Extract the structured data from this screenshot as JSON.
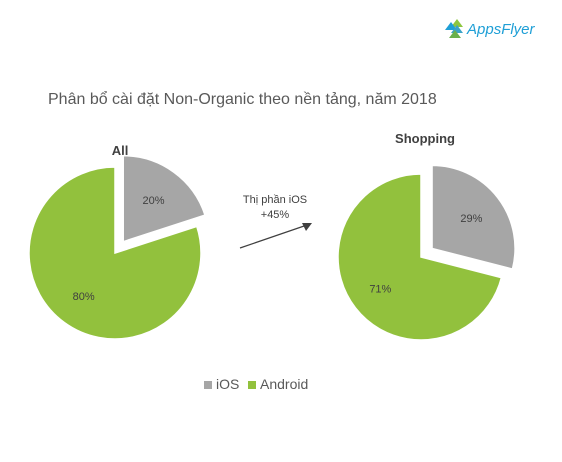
{
  "brand": {
    "name": "AppsFlyer",
    "color": "#1f9fd6",
    "petal_colors": [
      "#8dc63f",
      "#1f9fd6",
      "#3aa3c8",
      "#6ab04c"
    ]
  },
  "colors": {
    "ios": "#a6a6a6",
    "android": "#92c13d",
    "pie_edge": "#ffffff",
    "text": "#595959",
    "arrow": "#404040"
  },
  "chart_data": {
    "type": "pie",
    "title": "Phân bổ cài đặt Non-Organic theo nền tảng, năm 2018",
    "charts": [
      {
        "title": "All",
        "slices": [
          {
            "name": "iOS",
            "value": 20,
            "label": "20%",
            "exploded": true
          },
          {
            "name": "Android",
            "value": 80,
            "label": "80%",
            "exploded": false
          }
        ]
      },
      {
        "title": "Shopping",
        "slices": [
          {
            "name": "iOS",
            "value": 29,
            "label": "29%",
            "exploded": true
          },
          {
            "name": "Android",
            "value": 71,
            "label": "71%",
            "exploded": false
          }
        ]
      }
    ],
    "annotation": {
      "lines": [
        "Thị phần iOS",
        "+45%"
      ]
    },
    "legend": {
      "position": "bottom",
      "items": [
        {
          "name": "iOS",
          "label": "iOS"
        },
        {
          "name": "Android",
          "label": "Android"
        }
      ]
    }
  }
}
